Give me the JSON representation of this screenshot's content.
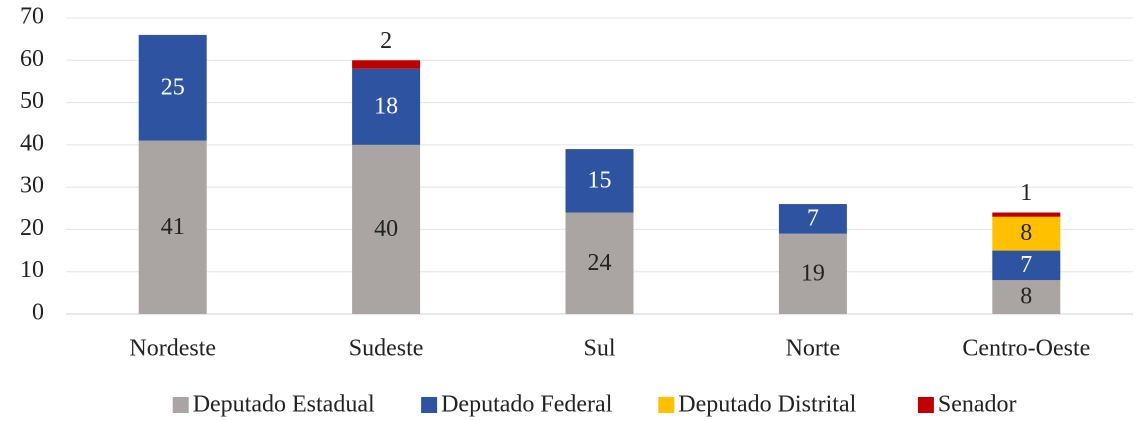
{
  "chart_data": {
    "type": "stacked_bar",
    "categories": [
      "Nordeste",
      "Sudeste",
      "Sul",
      "Norte",
      "Centro-Oeste"
    ],
    "series": [
      {
        "name": "Deputado Estadual",
        "color": "#aaa5a2",
        "values": [
          41,
          40,
          24,
          19,
          8
        ]
      },
      {
        "name": "Deputado Federal",
        "color": "#2e54a1",
        "values": [
          25,
          18,
          15,
          7,
          7
        ]
      },
      {
        "name": "Deputado Distrital",
        "color": "#ffc000",
        "values": [
          null,
          null,
          null,
          null,
          8
        ]
      },
      {
        "name": "Senador",
        "color": "#c00000",
        "values": [
          null,
          2,
          null,
          null,
          1
        ]
      }
    ],
    "ylim": [
      0,
      70
    ],
    "yticks": [
      0,
      10,
      20,
      30,
      40,
      50,
      60,
      70
    ],
    "grid": true,
    "legend": "bottom"
  }
}
